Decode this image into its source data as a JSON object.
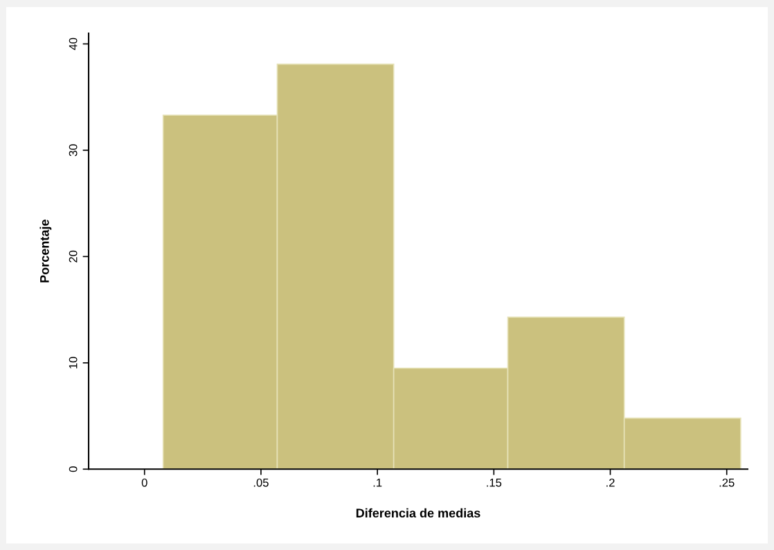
{
  "chart_data": {
    "type": "histogram",
    "xlabel": "Diferencia de medias",
    "ylabel": "Porcentaje",
    "bins": [
      0.008,
      0.057,
      0.107,
      0.156,
      0.206,
      0.256
    ],
    "values": [
      33.3,
      38.1,
      9.5,
      14.3,
      4.8
    ],
    "color": "#cbc17e",
    "xlim": [
      -0.024,
      0.259
    ],
    "ylim": [
      0,
      41
    ],
    "xticks": [
      0,
      {
        "value": 0.05,
        "label": ".05"
      },
      {
        "value": 0.1,
        "label": ".1"
      },
      {
        "value": 0.15,
        "label": ".15"
      },
      {
        "value": 0.2,
        "label": ".2"
      },
      {
        "value": 0.25,
        "label": ".25"
      }
    ],
    "yticks": [
      0,
      10,
      20,
      30,
      40
    ],
    "grid": false
  }
}
